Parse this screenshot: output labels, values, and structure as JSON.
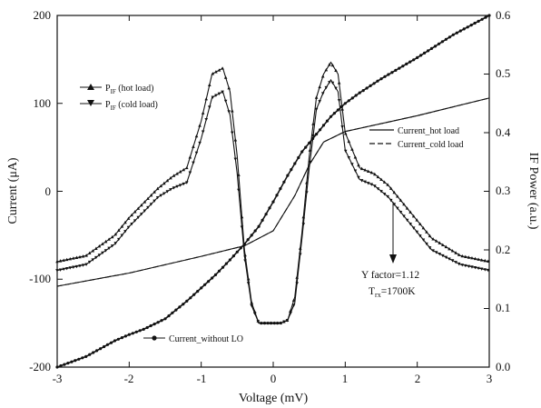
{
  "chart_data": {
    "type": "line",
    "xlabel": "Voltage (mV)",
    "ylabel_left": "Current (μA)",
    "ylabel_right": "IF Power (a.u.)",
    "xlim": [
      -3,
      3
    ],
    "ylim_left": [
      -200,
      200
    ],
    "ylim_right": [
      0.0,
      0.6
    ],
    "x_ticks": [
      "-3",
      "-2",
      "-1",
      "0",
      "1",
      "2",
      "3"
    ],
    "y_ticks_left": [
      "-200",
      "-100",
      "0",
      "100",
      "200"
    ],
    "y_ticks_right": [
      "0.0",
      "0.1",
      "0.2",
      "0.3",
      "0.4",
      "0.5",
      "0.6"
    ],
    "legend_left": [
      {
        "label_main": "P",
        "label_sub": "IF",
        "label_tail": " (hot load)",
        "marker": "triangle-up"
      },
      {
        "label_main": "P",
        "label_sub": "IF",
        "label_tail": " (cold load)",
        "marker": "triangle-down"
      }
    ],
    "legend_right": [
      {
        "label": "Current_hot load",
        "style": "solid"
      },
      {
        "label": "Current_cold load",
        "style": "dashed"
      }
    ],
    "annotations": {
      "without_lo": "Current_without LO",
      "yfactor": "Y factor=1.12",
      "trx_main": "T",
      "trx_sub": "rx",
      "trx_tail": "=1700K"
    },
    "series": [
      {
        "name": "Current_without LO",
        "axis": "left",
        "x": [
          -3.0,
          -2.6,
          -2.2,
          -2.0,
          -1.8,
          -1.5,
          -1.2,
          -1.0,
          -0.8,
          -0.6,
          -0.4,
          -0.2,
          0.0,
          0.2,
          0.4,
          0.6,
          0.8,
          1.0,
          1.2,
          1.5,
          2.0,
          2.5,
          3.0
        ],
        "y": [
          -200,
          -188,
          -170,
          -163,
          -157,
          -145,
          -125,
          -110,
          -95,
          -78,
          -60,
          -40,
          -12,
          18,
          45,
          65,
          85,
          100,
          112,
          128,
          152,
          178,
          200
        ]
      },
      {
        "name": "Current_hot load",
        "axis": "left",
        "x": [
          -3.0,
          -2.0,
          -1.0,
          -0.4,
          0.0,
          0.3,
          0.5,
          0.7,
          1.0,
          2.0,
          3.0
        ],
        "y": [
          -108,
          -93,
          -74,
          -62,
          -45,
          -5,
          30,
          56,
          68,
          86,
          106
        ]
      },
      {
        "name": "Current_cold load",
        "axis": "left",
        "x": [
          -3.0,
          -2.0,
          -1.0,
          -0.4,
          0.0,
          0.3,
          0.5,
          0.7,
          1.0,
          2.0,
          3.0
        ],
        "y": [
          -108,
          -93,
          -74,
          -62,
          -45,
          -5,
          30,
          56,
          68,
          86,
          106
        ]
      },
      {
        "name": "P_IF (hot load)",
        "axis": "right",
        "x": [
          -3.0,
          -2.6,
          -2.2,
          -2.0,
          -1.8,
          -1.6,
          -1.4,
          -1.2,
          -1.0,
          -0.85,
          -0.7,
          -0.6,
          -0.5,
          -0.4,
          -0.3,
          -0.2,
          -0.1,
          0.0,
          0.1,
          0.2,
          0.3,
          0.4,
          0.5,
          0.6,
          0.7,
          0.8,
          0.9,
          1.0,
          1.2,
          1.4,
          1.6,
          1.8,
          2.0,
          2.2,
          2.6,
          3.0
        ],
        "y": [
          0.18,
          0.19,
          0.225,
          0.255,
          0.28,
          0.305,
          0.325,
          0.34,
          0.42,
          0.5,
          0.51,
          0.47,
          0.36,
          0.2,
          0.11,
          0.075,
          0.075,
          0.075,
          0.075,
          0.08,
          0.12,
          0.23,
          0.36,
          0.46,
          0.5,
          0.52,
          0.5,
          0.4,
          0.34,
          0.33,
          0.31,
          0.28,
          0.25,
          0.22,
          0.19,
          0.18
        ]
      },
      {
        "name": "P_IF (cold load)",
        "axis": "right",
        "x": [
          -3.0,
          -2.6,
          -2.2,
          -2.0,
          -1.8,
          -1.6,
          -1.4,
          -1.2,
          -1.0,
          -0.85,
          -0.7,
          -0.6,
          -0.5,
          -0.4,
          -0.3,
          -0.2,
          -0.1,
          0.0,
          0.1,
          0.2,
          0.3,
          0.4,
          0.5,
          0.6,
          0.7,
          0.8,
          0.9,
          1.0,
          1.2,
          1.4,
          1.6,
          1.8,
          2.0,
          2.2,
          2.6,
          3.0
        ],
        "y": [
          0.165,
          0.175,
          0.21,
          0.24,
          0.265,
          0.29,
          0.305,
          0.315,
          0.39,
          0.46,
          0.47,
          0.43,
          0.33,
          0.19,
          0.105,
          0.075,
          0.075,
          0.075,
          0.075,
          0.08,
          0.11,
          0.22,
          0.34,
          0.44,
          0.47,
          0.49,
          0.47,
          0.37,
          0.32,
          0.31,
          0.29,
          0.26,
          0.23,
          0.2,
          0.175,
          0.165
        ]
      }
    ]
  }
}
